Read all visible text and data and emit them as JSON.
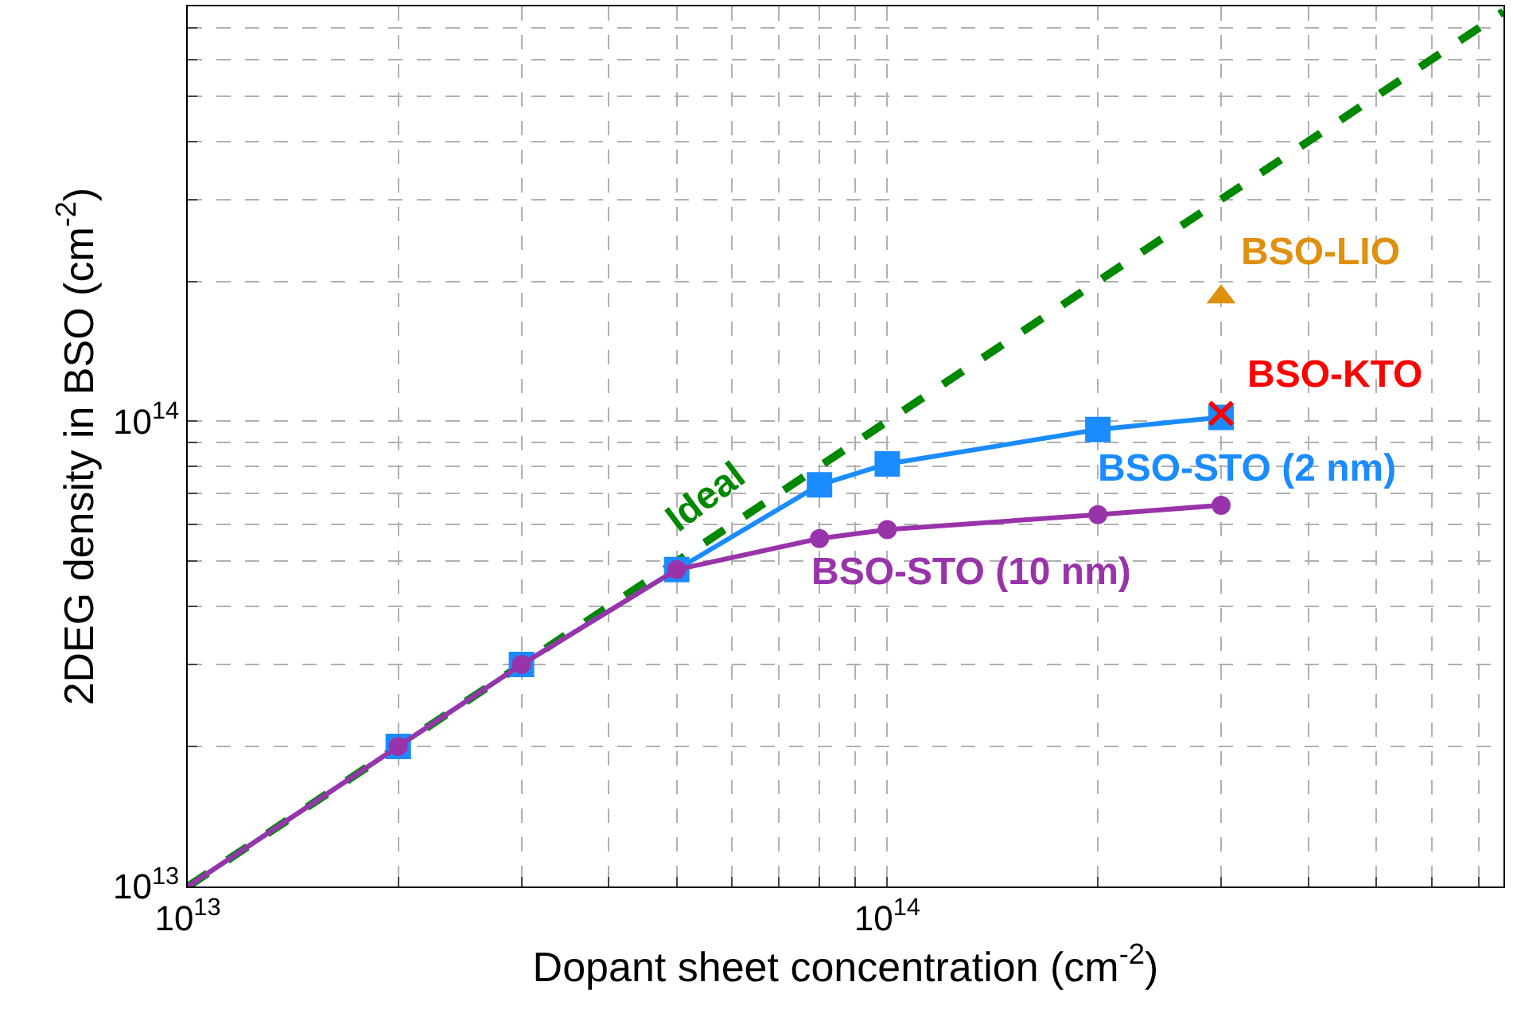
{
  "chart_data": {
    "type": "line",
    "xlabel": "Dopant sheet concentration (cm$^{-2}$)",
    "ylabel": "2DEG density in BSO (cm$^{-2}$)",
    "log": "xy",
    "grid": true,
    "legend": false,
    "xlim": [
      10000000000000.0,
      760000000000000.0
    ],
    "ylim": [
      10000000000000.0,
      780000000000000.0
    ],
    "xticks": [
      {
        "value": 10000000000000.0,
        "label": "10$^{13}$"
      },
      {
        "value": 20000000000000.0,
        "label": null
      },
      {
        "value": 30000000000000.0,
        "label": null
      },
      {
        "value": 40000000000000.0,
        "label": null
      },
      {
        "value": 50000000000000.0,
        "label": null
      },
      {
        "value": 60000000000000.0,
        "label": null
      },
      {
        "value": 70000000000000.0,
        "label": null
      },
      {
        "value": 80000000000000.0,
        "label": null
      },
      {
        "value": 90000000000000.0,
        "label": null
      },
      {
        "value": 100000000000000.0,
        "label": "10$^{14}$"
      },
      {
        "value": 200000000000000.0,
        "label": null
      },
      {
        "value": 300000000000000.0,
        "label": null
      },
      {
        "value": 400000000000000.0,
        "label": null
      },
      {
        "value": 500000000000000.0,
        "label": null
      },
      {
        "value": 600000000000000.0,
        "label": null
      },
      {
        "value": 700000000000000.0,
        "label": null
      }
    ],
    "yticks": [
      {
        "value": 10000000000000.0,
        "label": "10$^{13}$"
      },
      {
        "value": 20000000000000.0,
        "label": null
      },
      {
        "value": 30000000000000.0,
        "label": null
      },
      {
        "value": 40000000000000.0,
        "label": null
      },
      {
        "value": 50000000000000.0,
        "label": null
      },
      {
        "value": 60000000000000.0,
        "label": null
      },
      {
        "value": 70000000000000.0,
        "label": null
      },
      {
        "value": 80000000000000.0,
        "label": null
      },
      {
        "value": 90000000000000.0,
        "label": null
      },
      {
        "value": 100000000000000.0,
        "label": "10$^{14}$"
      },
      {
        "value": 200000000000000.0,
        "label": null
      },
      {
        "value": 300000000000000.0,
        "label": null
      },
      {
        "value": 400000000000000.0,
        "label": null
      },
      {
        "value": 500000000000000.0,
        "label": null
      },
      {
        "value": 600000000000000.0,
        "label": null
      },
      {
        "value": 700000000000000.0,
        "label": null
      }
    ],
    "series": [
      {
        "name": "Ideal",
        "color": "#008800",
        "line_style": "dashed",
        "marker": "none",
        "x": [
          10000000000000.0,
          760000000000000.0
        ],
        "values": [
          10000000000000.0,
          760000000000000.0
        ]
      },
      {
        "name": "BSO-STO (2 nm)",
        "color": "#1a8cff",
        "line_style": "solid",
        "marker": "square",
        "x": [
          10000000000000.0,
          20000000000000.0,
          30000000000000.0,
          50000000000000.0,
          80000000000000.0,
          100000000000000.0,
          200000000000000.0,
          300000000000000.0
        ],
        "values": [
          10000000000000.0,
          20000000000000.0,
          30000000000000.0,
          48000000000000.0,
          73000000000000.0,
          81000000000000.0,
          96000000000000.0,
          102000000000000.0
        ]
      },
      {
        "name": "BSO-STO (10 nm)",
        "color": "#9933aa",
        "line_style": "solid",
        "marker": "circle",
        "x": [
          10000000000000.0,
          20000000000000.0,
          30000000000000.0,
          50000000000000.0,
          80000000000000.0,
          100000000000000.0,
          200000000000000.0,
          300000000000000.0
        ],
        "values": [
          10000000000000.0,
          20000000000000.0,
          30000000000000.0,
          48000000000000.0,
          56000000000000.0,
          58500000000000.0,
          63000000000000.0,
          66000000000000.0
        ]
      },
      {
        "name": "BSO-LIO",
        "color": "#e09010",
        "type": "scatter",
        "marker": "triangle",
        "x": [
          300000000000000.0
        ],
        "values": [
          185000000000000.0
        ]
      },
      {
        "name": "BSO-KTO",
        "color": "#ff0000",
        "type": "scatter",
        "marker": "cross",
        "x": [
          300000000000000.0
        ],
        "values": [
          104000000000000.0
        ]
      }
    ]
  }
}
